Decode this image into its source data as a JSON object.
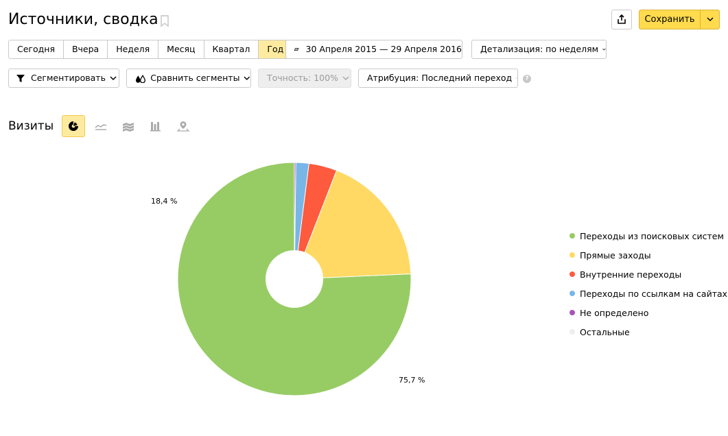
{
  "header": {
    "title": "Источники, сводка",
    "save_label": "Сохранить"
  },
  "period_tabs": [
    {
      "label": "Сегодня",
      "active": false
    },
    {
      "label": "Вчера",
      "active": false
    },
    {
      "label": "Неделя",
      "active": false
    },
    {
      "label": "Месяц",
      "active": false
    },
    {
      "label": "Квартал",
      "active": false
    },
    {
      "label": "Год",
      "active": true
    }
  ],
  "date_range": "30 Апреля 2015 — 29 Апреля 2016",
  "detail": "Детализация: по неделям",
  "toolbar": {
    "segment_label": "Сегментировать",
    "compare_label": "Сравнить сегменты",
    "accuracy_label": "Точность: 100%",
    "attribution_label": "Атрибуция: Последний переход",
    "help_glyph": "?"
  },
  "section": {
    "title": "Визиты",
    "chart_types": [
      "pie-chart-icon",
      "line-chart-icon",
      "area-chart-icon",
      "bar-chart-icon",
      "map-icon"
    ]
  },
  "colors": {
    "accent": "#ffdb4d",
    "accent_light": "#ffeba0"
  },
  "chart_data": {
    "type": "pie",
    "title": "",
    "donut": true,
    "legend_position": "right",
    "series": [
      {
        "name": "Переходы из поисковых систем",
        "value": 75.7,
        "color": "#97cc64"
      },
      {
        "name": "Прямые заходы",
        "value": 18.4,
        "color": "#ffd963"
      },
      {
        "name": "Внутренние переходы",
        "value": 3.9,
        "color": "#fd5a3e"
      },
      {
        "name": "Переходы по ссылкам на сайтах",
        "value": 1.8,
        "color": "#77b6e7"
      },
      {
        "name": "Не определено",
        "value": 0.2,
        "color": "#a955b8"
      },
      {
        "name": "Остальные",
        "value": 0.0,
        "color": "#eeeeee"
      }
    ],
    "data_labels": [
      "75,7 %",
      "18,4 %"
    ]
  }
}
